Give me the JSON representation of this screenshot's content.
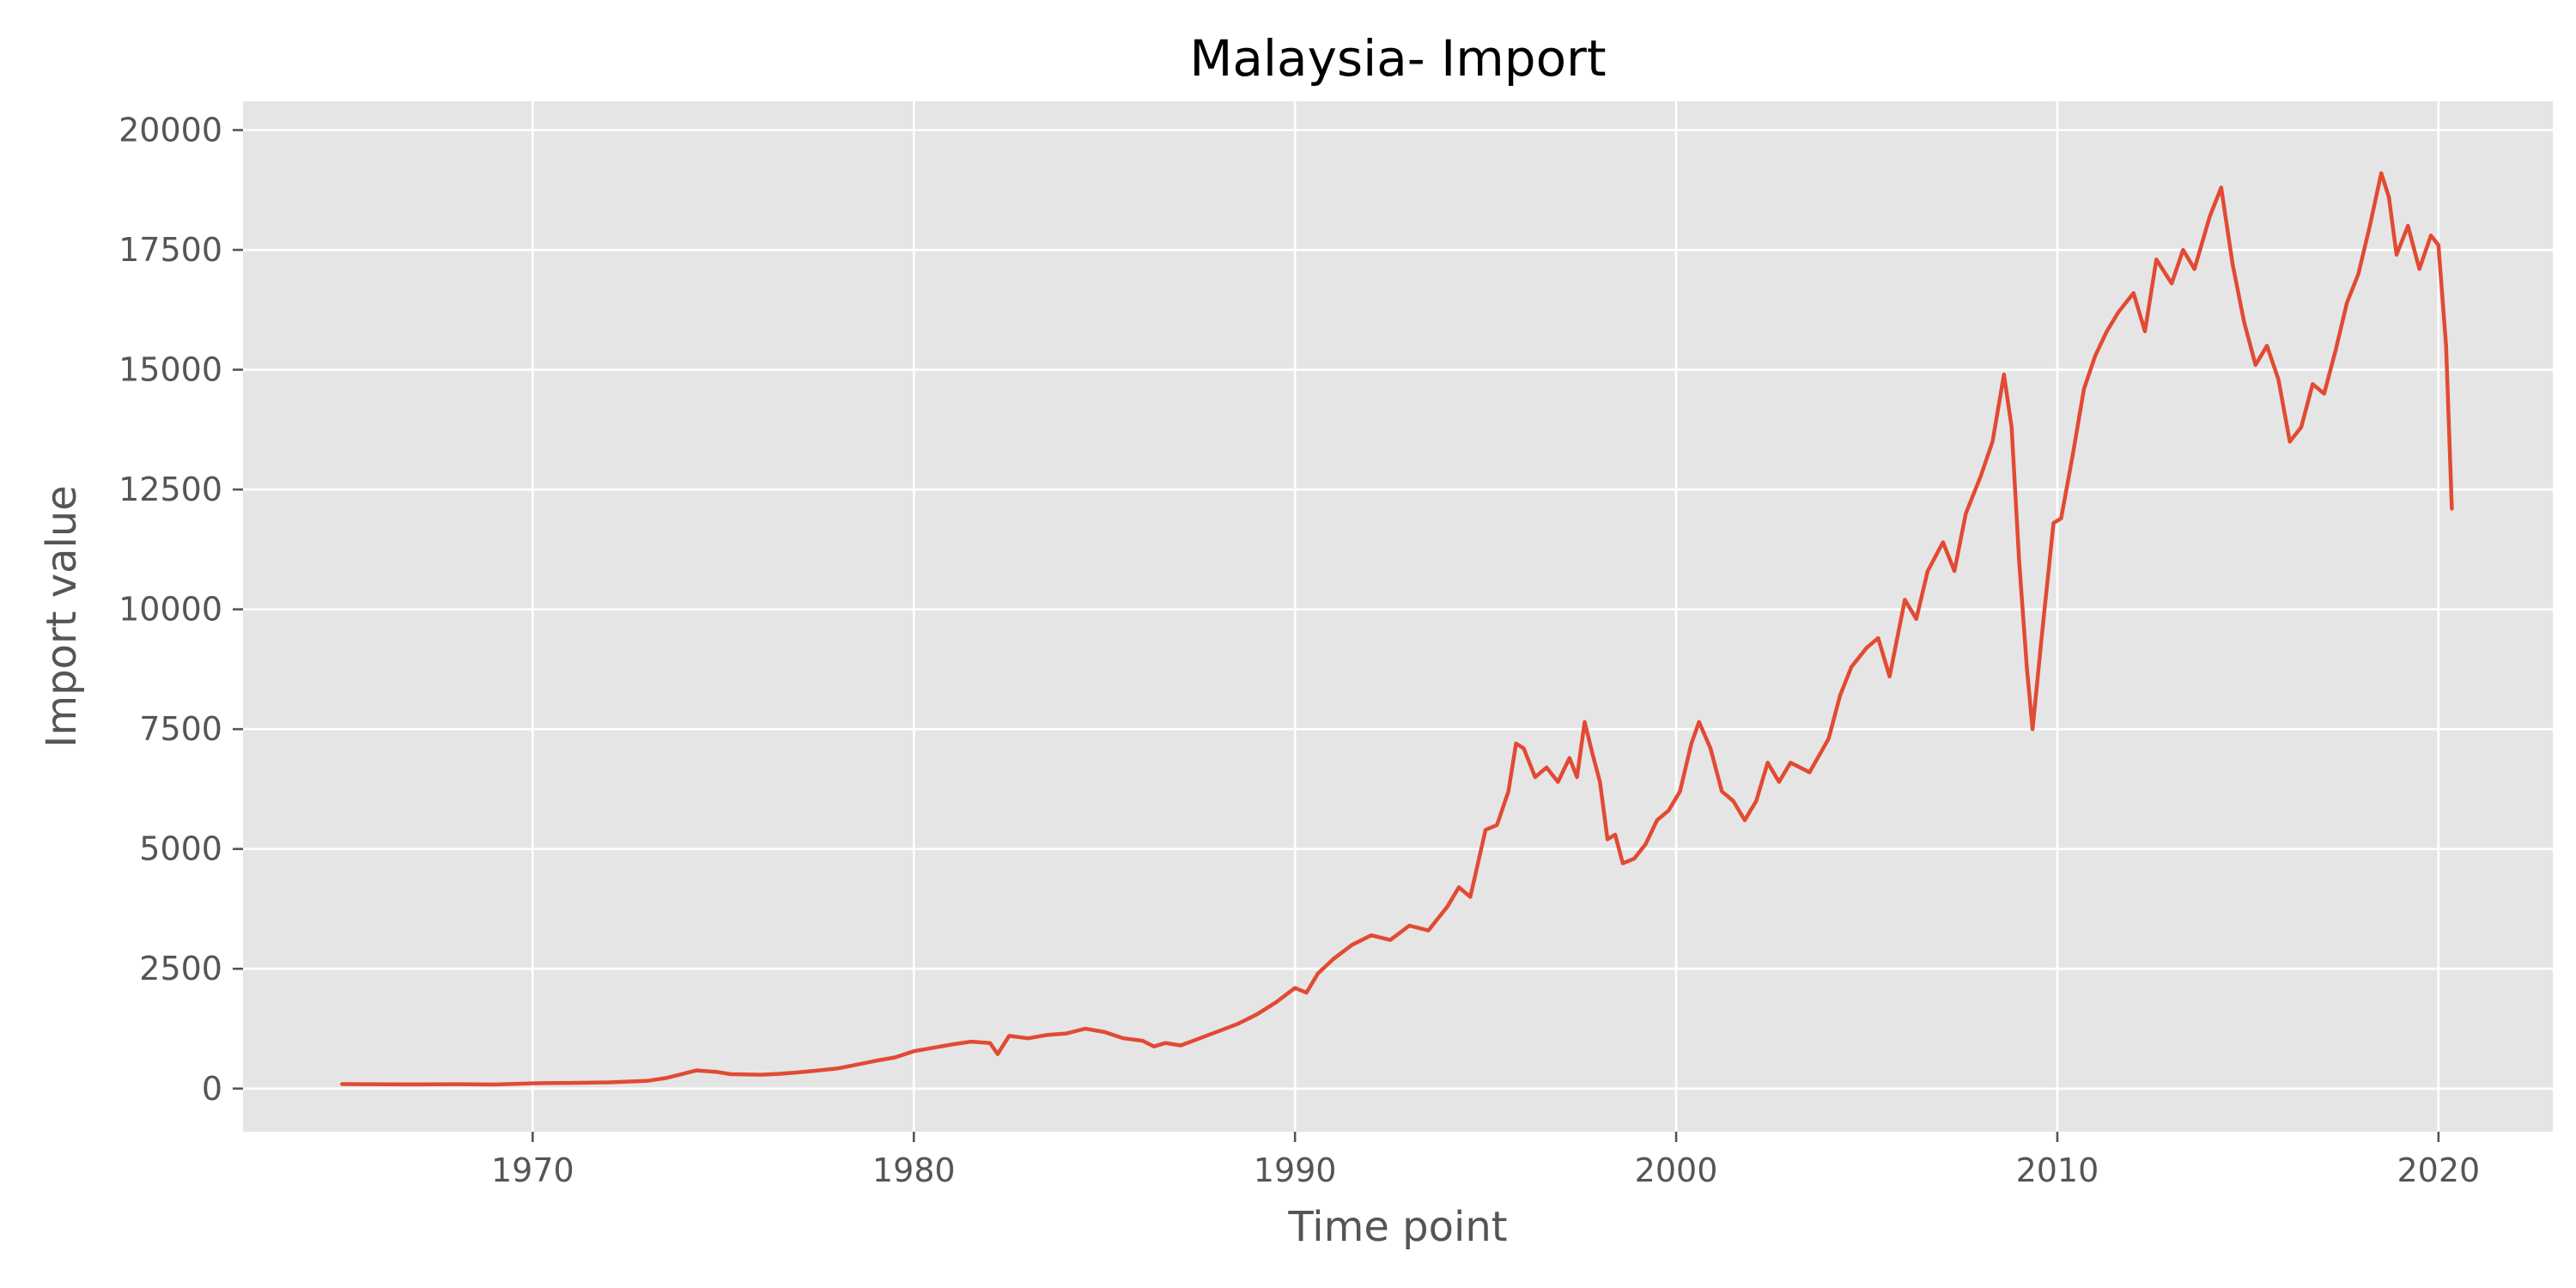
{
  "chart_data": {
    "type": "line",
    "title": "Malaysia- Import",
    "xlabel": "Time point",
    "ylabel": "Import value",
    "xlim": [
      1962.4,
      2023.0
    ],
    "ylim": [
      -900,
      20600
    ],
    "xticks": [
      1970,
      1980,
      1990,
      2000,
      2010,
      2020
    ],
    "yticks": [
      0,
      2500,
      5000,
      7500,
      10000,
      12500,
      15000,
      17500,
      20000
    ],
    "grid": true,
    "legend": "none",
    "colors": {
      "background": "#E5E5E5",
      "line": "#E24A33",
      "grid": "#FFFFFF",
      "text": "#555555"
    },
    "series": [
      {
        "points": [
          [
            1965.0,
            95
          ],
          [
            1966.0,
            90
          ],
          [
            1967.0,
            88
          ],
          [
            1968.0,
            92
          ],
          [
            1969.0,
            85
          ],
          [
            1970.0,
            110
          ],
          [
            1971.0,
            120
          ],
          [
            1972.0,
            130
          ],
          [
            1973.0,
            160
          ],
          [
            1973.5,
            220
          ],
          [
            1974.0,
            320
          ],
          [
            1974.3,
            380
          ],
          [
            1974.8,
            350
          ],
          [
            1975.2,
            300
          ],
          [
            1976.0,
            290
          ],
          [
            1976.5,
            310
          ],
          [
            1977.0,
            340
          ],
          [
            1977.5,
            380
          ],
          [
            1978.0,
            420
          ],
          [
            1978.5,
            500
          ],
          [
            1979.0,
            580
          ],
          [
            1979.5,
            650
          ],
          [
            1980.0,
            780
          ],
          [
            1980.5,
            850
          ],
          [
            1981.0,
            920
          ],
          [
            1981.5,
            980
          ],
          [
            1982.0,
            950
          ],
          [
            1982.2,
            720
          ],
          [
            1982.5,
            1100
          ],
          [
            1983.0,
            1050
          ],
          [
            1983.5,
            1120
          ],
          [
            1984.0,
            1150
          ],
          [
            1984.5,
            1250
          ],
          [
            1985.0,
            1180
          ],
          [
            1985.5,
            1050
          ],
          [
            1986.0,
            1000
          ],
          [
            1986.3,
            880
          ],
          [
            1986.6,
            950
          ],
          [
            1987.0,
            900
          ],
          [
            1987.5,
            1050
          ],
          [
            1988.0,
            1200
          ],
          [
            1988.5,
            1350
          ],
          [
            1989.0,
            1550
          ],
          [
            1989.5,
            1800
          ],
          [
            1990.0,
            2100
          ],
          [
            1990.3,
            2000
          ],
          [
            1990.6,
            2400
          ],
          [
            1991.0,
            2700
          ],
          [
            1991.5,
            3000
          ],
          [
            1992.0,
            3200
          ],
          [
            1992.5,
            3100
          ],
          [
            1993.0,
            3400
          ],
          [
            1993.5,
            3300
          ],
          [
            1994.0,
            3800
          ],
          [
            1994.3,
            4200
          ],
          [
            1994.6,
            4000
          ],
          [
            1995.0,
            5400
          ],
          [
            1995.3,
            5500
          ],
          [
            1995.6,
            6200
          ],
          [
            1995.8,
            7200
          ],
          [
            1996.0,
            7100
          ],
          [
            1996.3,
            6500
          ],
          [
            1996.6,
            6700
          ],
          [
            1996.9,
            6400
          ],
          [
            1997.2,
            6900
          ],
          [
            1997.4,
            6500
          ],
          [
            1997.6,
            7650
          ],
          [
            1997.8,
            7000
          ],
          [
            1998.0,
            6400
          ],
          [
            1998.2,
            5200
          ],
          [
            1998.4,
            5300
          ],
          [
            1998.6,
            4700
          ],
          [
            1998.9,
            4800
          ],
          [
            1999.2,
            5100
          ],
          [
            1999.5,
            5600
          ],
          [
            1999.8,
            5800
          ],
          [
            2000.1,
            6200
          ],
          [
            2000.4,
            7200
          ],
          [
            2000.6,
            7650
          ],
          [
            2000.9,
            7100
          ],
          [
            2001.2,
            6200
          ],
          [
            2001.5,
            6000
          ],
          [
            2001.8,
            5600
          ],
          [
            2002.1,
            6000
          ],
          [
            2002.4,
            6800
          ],
          [
            2002.7,
            6400
          ],
          [
            2003.0,
            6800
          ],
          [
            2003.5,
            6600
          ],
          [
            2004.0,
            7300
          ],
          [
            2004.3,
            8200
          ],
          [
            2004.6,
            8800
          ],
          [
            2005.0,
            9200
          ],
          [
            2005.3,
            9400
          ],
          [
            2005.6,
            8600
          ],
          [
            2006.0,
            10200
          ],
          [
            2006.3,
            9800
          ],
          [
            2006.6,
            10800
          ],
          [
            2007.0,
            11400
          ],
          [
            2007.3,
            10800
          ],
          [
            2007.6,
            12000
          ],
          [
            2008.0,
            12800
          ],
          [
            2008.3,
            13500
          ],
          [
            2008.6,
            14900
          ],
          [
            2008.8,
            13800
          ],
          [
            2009.0,
            11000
          ],
          [
            2009.2,
            8800
          ],
          [
            2009.35,
            7500
          ],
          [
            2009.6,
            9500
          ],
          [
            2009.9,
            11800
          ],
          [
            2010.1,
            11900
          ],
          [
            2010.4,
            13200
          ],
          [
            2010.7,
            14600
          ],
          [
            2011.0,
            15300
          ],
          [
            2011.3,
            15800
          ],
          [
            2011.6,
            16200
          ],
          [
            2012.0,
            16600
          ],
          [
            2012.3,
            15800
          ],
          [
            2012.6,
            17300
          ],
          [
            2013.0,
            16800
          ],
          [
            2013.3,
            17500
          ],
          [
            2013.6,
            17100
          ],
          [
            2014.0,
            18200
          ],
          [
            2014.3,
            18800
          ],
          [
            2014.6,
            17200
          ],
          [
            2014.9,
            16000
          ],
          [
            2015.2,
            15100
          ],
          [
            2015.5,
            15500
          ],
          [
            2015.8,
            14800
          ],
          [
            2016.1,
            13500
          ],
          [
            2016.4,
            13800
          ],
          [
            2016.7,
            14700
          ],
          [
            2017.0,
            14500
          ],
          [
            2017.3,
            15400
          ],
          [
            2017.6,
            16400
          ],
          [
            2017.9,
            17000
          ],
          [
            2018.2,
            18000
          ],
          [
            2018.5,
            19100
          ],
          [
            2018.7,
            18600
          ],
          [
            2018.9,
            17400
          ],
          [
            2019.2,
            18000
          ],
          [
            2019.5,
            17100
          ],
          [
            2019.8,
            17800
          ],
          [
            2020.0,
            17600
          ],
          [
            2020.2,
            15500
          ],
          [
            2020.35,
            12100
          ]
        ]
      }
    ]
  }
}
